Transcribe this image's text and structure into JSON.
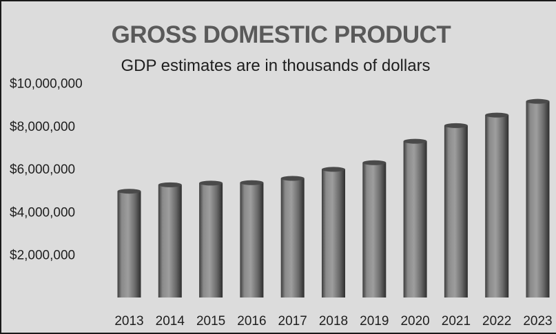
{
  "chart_data": {
    "type": "bar",
    "title": "GROSS DOMESTIC PRODUCT",
    "subtitle": "GDP estimates are in thousands of dollars",
    "xlabel": "",
    "ylabel": "",
    "categories": [
      "2013",
      "2014",
      "2015",
      "2016",
      "2017",
      "2018",
      "2019",
      "2020",
      "2021",
      "2022",
      "2023"
    ],
    "values": [
      5050000,
      5350000,
      5430000,
      5450000,
      5650000,
      6070000,
      6380000,
      7380000,
      8110000,
      8600000,
      9240000
    ],
    "ylim": [
      0,
      10000000
    ],
    "yticks": [
      2000000,
      4000000,
      6000000,
      8000000,
      10000000
    ],
    "ytick_labels": [
      "$2,000,000",
      "$4,000,000",
      "$6,000,000",
      "$8,000,000",
      "$10,000,000"
    ],
    "grid": false,
    "legend": "none",
    "bar_color": "#6e6e6e",
    "background_color": "#dcdcdc"
  }
}
